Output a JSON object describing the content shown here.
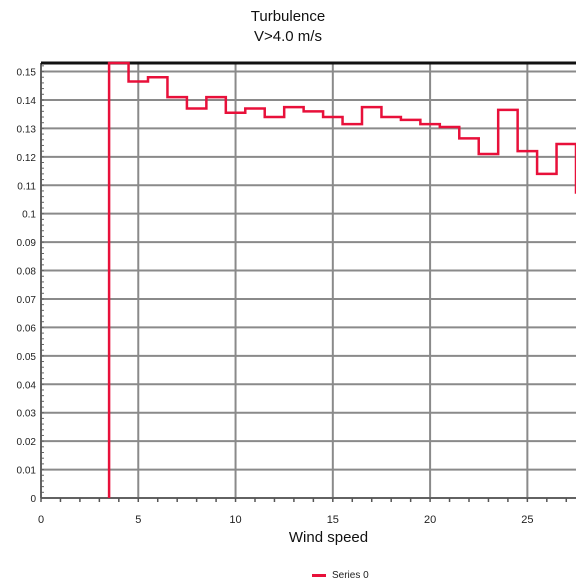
{
  "chart_data": {
    "type": "line",
    "step": true,
    "title": "Turbulence",
    "subtitle": "V>4.0 m/s",
    "xlabel": "Wind speed",
    "ylabel": "",
    "xlim": [
      0,
      27.5
    ],
    "ylim": [
      0,
      0.153
    ],
    "x_ticks": [
      0,
      5,
      10,
      15,
      20,
      25
    ],
    "y_ticks": [
      "0",
      "0.01",
      "0.02",
      "0.03",
      "0.04",
      "0.05",
      "0.06",
      "0.07",
      "0.08",
      "0.09",
      "0.1",
      "0.11",
      "0.12",
      "0.13",
      "0.14",
      "0.15"
    ],
    "grid": true,
    "legend_position": "bottom",
    "series": [
      {
        "name": "Series 0",
        "color": "#e8103a",
        "x": [
          3.5,
          4.5,
          5.5,
          6.5,
          7.5,
          8.5,
          9.5,
          10.5,
          11.5,
          12.5,
          13.5,
          14.5,
          15.5,
          16.5,
          17.5,
          18.5,
          19.5,
          20.5,
          21.5,
          22.5,
          23.5,
          24.5,
          25.5,
          26.5
        ],
        "values": [
          0.153,
          0.1465,
          0.148,
          0.141,
          0.137,
          0.141,
          0.1355,
          0.137,
          0.134,
          0.1375,
          0.136,
          0.134,
          0.1315,
          0.1375,
          0.134,
          0.133,
          0.1315,
          0.1305,
          0.1265,
          0.121,
          0.1365,
          0.122,
          0.114,
          0.1245
        ],
        "end_x": 27.5,
        "end_value": 0.107
      }
    ]
  }
}
